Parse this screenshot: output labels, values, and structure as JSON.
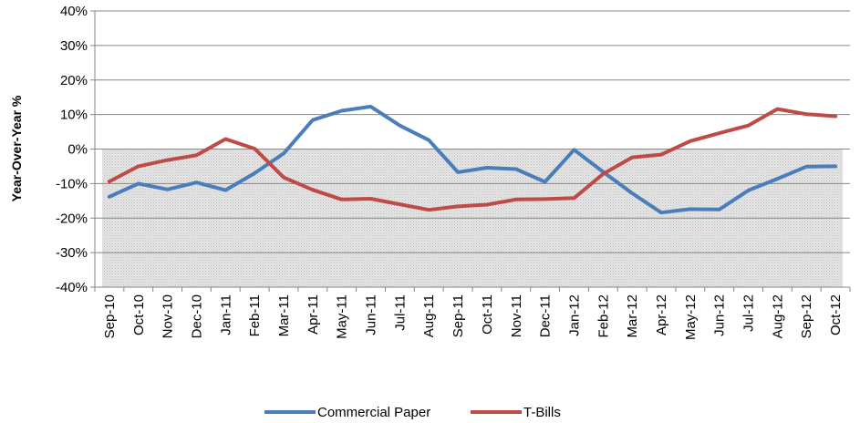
{
  "chart_data": {
    "type": "line",
    "title": "",
    "xlabel": "",
    "ylabel": "Year-Over-Year %",
    "ylim": [
      -40,
      40
    ],
    "yticks": [
      40,
      30,
      20,
      10,
      0,
      -10,
      -20,
      -30,
      -40
    ],
    "ytick_labels": [
      "40%",
      "30%",
      "20%",
      "10%",
      "0%",
      "-10%",
      "-20%",
      "-30%",
      "-40%"
    ],
    "grid": "horizontal",
    "shaded_region": [
      -40,
      0
    ],
    "legend_position": "bottom",
    "categories": [
      "Sep-10",
      "Oct-10",
      "Nov-10",
      "Dec-10",
      "Jan-11",
      "Feb-11",
      "Mar-11",
      "Apr-11",
      "May-11",
      "Jun-11",
      "Jul-11",
      "Aug-11",
      "Sep-11",
      "Oct-11",
      "Nov-11",
      "Dec-11",
      "Jan-12",
      "Feb-12",
      "Mar-12",
      "Apr-12",
      "May-12",
      "Jun-12",
      "Jul-12",
      "Aug-12",
      "Sep-12",
      "Oct-12"
    ],
    "series": [
      {
        "name": "Commercial Paper",
        "color": "#4a7ebb",
        "values": [
          -13.8,
          -10.0,
          -11.7,
          -9.7,
          -11.9,
          -7.0,
          -1.3,
          8.4,
          11.1,
          12.3,
          6.8,
          2.6,
          -6.7,
          -5.4,
          -5.8,
          -9.5,
          -0.2,
          -6.6,
          -12.8,
          -18.4,
          -17.4,
          -17.5,
          -12.0,
          -8.6,
          -5.1,
          -5.0
        ]
      },
      {
        "name": "T-Bills",
        "color": "#be4b48",
        "values": [
          -9.4,
          -5.0,
          -3.2,
          -1.8,
          2.9,
          0.1,
          -8.2,
          -11.8,
          -14.6,
          -14.4,
          -16.0,
          -17.6,
          -16.6,
          -16.1,
          -14.6,
          -14.5,
          -14.2,
          -7.2,
          -2.4,
          -1.6,
          2.3,
          4.6,
          6.8,
          11.6,
          10.1,
          9.5
        ]
      }
    ]
  }
}
